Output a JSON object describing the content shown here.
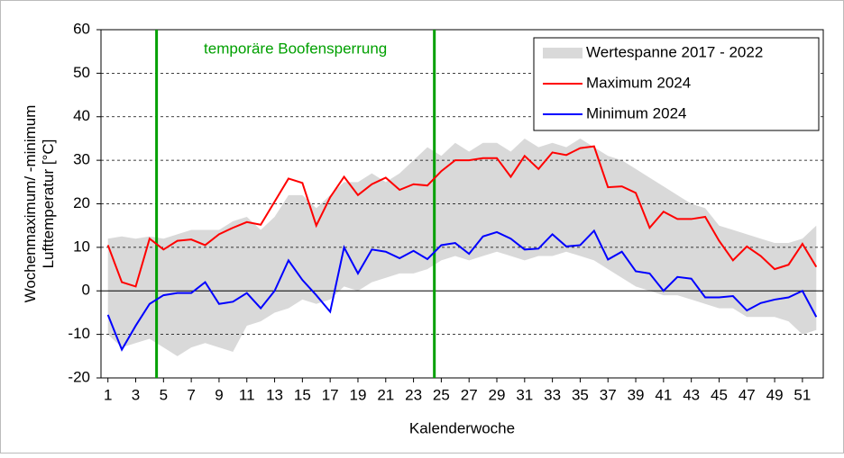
{
  "chart_data": {
    "type": "line",
    "ylabel": [
      "Wochenmaximum/ -minimum",
      "Lufttemperatur [°C]"
    ],
    "xlabel": "Kalenderwoche",
    "x": [
      1,
      2,
      3,
      4,
      5,
      6,
      7,
      8,
      9,
      10,
      11,
      12,
      13,
      14,
      15,
      16,
      17,
      18,
      19,
      20,
      21,
      22,
      23,
      24,
      25,
      26,
      27,
      28,
      29,
      30,
      31,
      32,
      33,
      34,
      35,
      36,
      37,
      38,
      39,
      40,
      41,
      42,
      43,
      44,
      45,
      46,
      47,
      48,
      49,
      50,
      51,
      52
    ],
    "xlim": [
      0.5,
      52.5
    ],
    "xticks": [
      1,
      3,
      5,
      7,
      9,
      11,
      13,
      15,
      17,
      19,
      21,
      23,
      25,
      27,
      29,
      31,
      33,
      35,
      37,
      39,
      41,
      43,
      45,
      47,
      49,
      51
    ],
    "ylim": [
      -20,
      60
    ],
    "yticks": [
      -20,
      -10,
      0,
      10,
      20,
      30,
      40,
      50,
      60
    ],
    "grid": true,
    "legend": "upper right",
    "series": [
      {
        "name": "Wertespanne 2017 - 2022",
        "color": "#d9d9d9",
        "upper": [
          12,
          12.5,
          12,
          12.5,
          12,
          13,
          14,
          14,
          14,
          16,
          17,
          14,
          17,
          22,
          22,
          19,
          22,
          25,
          25,
          27,
          25,
          27,
          30,
          33,
          31,
          34,
          32,
          34,
          34,
          32,
          35,
          33,
          34,
          33,
          35,
          33,
          31,
          30,
          28,
          26,
          24,
          22,
          20,
          19,
          15,
          14,
          13,
          12,
          11,
          11,
          12,
          15
        ],
        "lower": [
          -10,
          -13,
          -12,
          -11,
          -13,
          -15,
          -13,
          -12,
          -13,
          -14,
          -8,
          -7,
          -5,
          -4,
          -2,
          -3,
          -2,
          1,
          0,
          2,
          3,
          4,
          4,
          5,
          7,
          8,
          7,
          8,
          9,
          8,
          7,
          8,
          8,
          9,
          8,
          7,
          5,
          3,
          1,
          0,
          -1,
          -1,
          -2,
          -3,
          -4,
          -4,
          -6,
          -6,
          -6,
          -7,
          -10,
          -9
        ]
      },
      {
        "name": "Maximum 2024",
        "color": "#ff0000",
        "values": [
          10.5,
          2,
          1,
          12,
          9.5,
          11.5,
          11.8,
          10.5,
          13,
          14.5,
          15.8,
          15.2,
          20.5,
          25.8,
          24.8,
          15,
          21.5,
          26.2,
          22,
          24.5,
          26,
          23.2,
          24.5,
          24.2,
          27.5,
          30,
          30,
          30.5,
          30.5,
          26.2,
          31,
          28,
          31.8,
          31.2,
          32.8,
          33.2,
          23.8,
          24,
          22.5,
          14.5,
          18.2,
          16.5,
          16.5,
          17,
          11.5,
          7,
          10.2,
          8,
          5,
          6,
          10.8,
          5.5
        ]
      },
      {
        "name": "Minimum 2024",
        "color": "#0000ff",
        "values": [
          -5.5,
          -13.5,
          -8,
          -3,
          -1,
          -0.5,
          -0.5,
          2,
          -3,
          -2.5,
          -0.5,
          -4,
          0,
          7,
          2.5,
          -1,
          -4.8,
          10,
          4,
          9.5,
          9,
          7.5,
          9.2,
          7.3,
          10.5,
          11,
          8.5,
          12.5,
          13.5,
          12,
          9.5,
          9.7,
          13,
          10.2,
          10.5,
          13.8,
          7.2,
          9,
          4.5,
          4,
          0,
          3.2,
          2.8,
          -1.5,
          -1.5,
          -1.2,
          -4.5,
          -2.8,
          -2,
          -1.5,
          0,
          -6
        ]
      }
    ],
    "vlines": [
      4.5,
      24.5
    ],
    "vline_color": "#00a000",
    "annotation": "temporäre Boofensperrung"
  }
}
